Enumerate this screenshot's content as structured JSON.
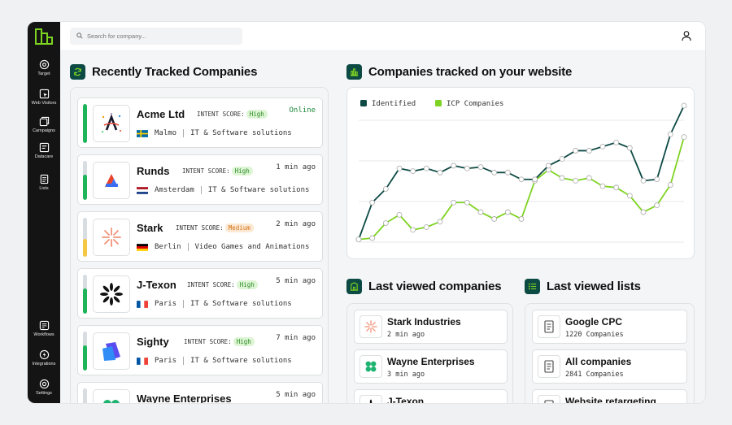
{
  "sidebar": {
    "items": [
      {
        "label": "Target",
        "icon": "target-icon"
      },
      {
        "label": "Web Visitors",
        "icon": "web-visitors-icon"
      },
      {
        "label": "Campaigns",
        "icon": "campaigns-icon"
      },
      {
        "label": "Datacare",
        "icon": "datacare-icon"
      },
      {
        "label": "Lists",
        "icon": "lists-icon"
      }
    ],
    "bottom_items": [
      {
        "label": "Workflows",
        "icon": "workflows-icon"
      },
      {
        "label": "Integrations",
        "icon": "integrations-icon"
      },
      {
        "label": "Settings",
        "icon": "settings-icon"
      }
    ]
  },
  "search": {
    "placeholder": "Search for company..."
  },
  "recent": {
    "title": "Recently Tracked Companies",
    "intent_label": "INTENT SCORE:",
    "companies": [
      {
        "name": "Acme Ltd",
        "score": "High",
        "status": "Online",
        "city": "Malmo",
        "industry": "IT & Software solutions",
        "country": "SE",
        "intent_level": 1.0
      },
      {
        "name": "Runds",
        "score": "High",
        "status": "1 min ago",
        "city": "Amsterdam",
        "industry": "IT & Software solutions",
        "country": "NL",
        "intent_level": 0.65
      },
      {
        "name": "Stark",
        "score": "Medium",
        "status": "2 min ago",
        "city": "Berlin",
        "industry": "Video Games and Animations",
        "country": "DE",
        "intent_level": 0.45
      },
      {
        "name": "J-Texon",
        "score": "High",
        "status": "5 min ago",
        "city": "Paris",
        "industry": "IT & Software solutions",
        "country": "FR",
        "intent_level": 0.65
      },
      {
        "name": "Sighty",
        "score": "High",
        "status": "7 min ago",
        "city": "Paris",
        "industry": "IT & Software solutions",
        "country": "FR",
        "intent_level": 0.65
      },
      {
        "name": "Wayne Enterprises",
        "score": "",
        "status": "5 min ago",
        "city": "",
        "industry": "",
        "country": "",
        "intent_level": 0.5
      }
    ]
  },
  "chart_section": {
    "title": "Companies tracked on your website"
  },
  "chart_data": {
    "type": "line",
    "legend_position": "top-left",
    "grid": true,
    "ylim": [
      0,
      100
    ],
    "series": [
      {
        "name": "Identified",
        "color": "#0d4a44",
        "values": [
          2,
          29,
          39,
          54,
          52,
          54,
          51,
          56,
          54,
          55,
          51,
          51,
          46,
          46,
          56,
          61,
          67,
          67,
          70,
          73,
          69,
          45,
          46,
          79,
          100
        ]
      },
      {
        "name": "ICP Companies",
        "color": "#7ed321",
        "values": [
          2,
          3,
          14,
          20,
          9,
          11,
          15,
          29,
          29,
          22,
          17,
          22,
          17,
          45,
          53,
          47,
          45,
          47,
          41,
          40,
          34,
          22,
          27,
          42,
          77
        ]
      }
    ]
  },
  "last_companies": {
    "title": "Last viewed companies",
    "items": [
      {
        "name": "Stark Industries",
        "sub": "2 min ago"
      },
      {
        "name": "Wayne Enterprises",
        "sub": "3 min ago"
      },
      {
        "name": "J-Texon",
        "sub": ""
      }
    ]
  },
  "last_lists": {
    "title": "Last viewed lists",
    "items": [
      {
        "name": "Google CPC",
        "sub": "1220 Companies"
      },
      {
        "name": "All companies",
        "sub": "2841 Companies"
      },
      {
        "name": "Website retargeting",
        "sub": ""
      }
    ]
  },
  "colors": {
    "brand_dark": "#0d4a44",
    "accent_green": "#7ed321",
    "intent_high": "#1eb45a",
    "intent_medium": "#f5c842"
  }
}
